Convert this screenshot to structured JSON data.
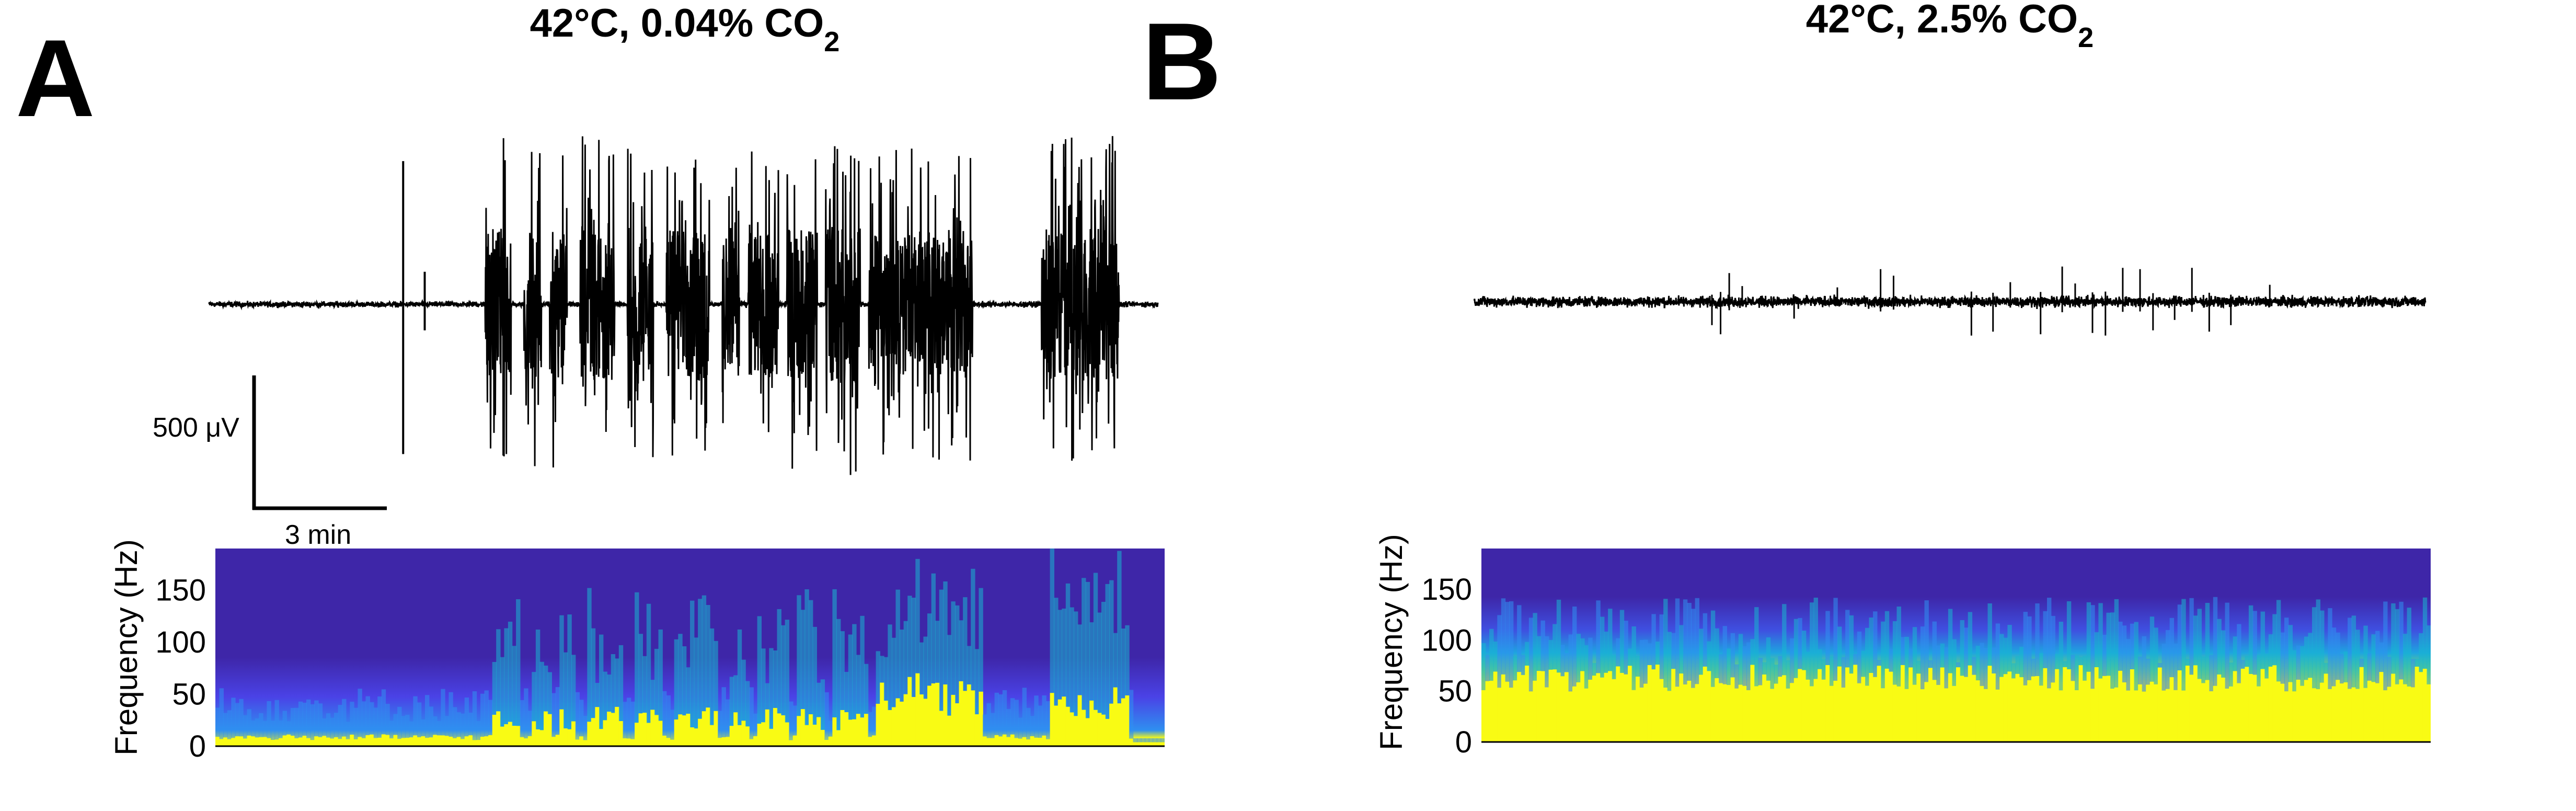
{
  "figure": {
    "panels": [
      {
        "letter": "A",
        "title": "42°C, 0.04% CO",
        "title_sub": "2",
        "scale_bar": {
          "voltage_label": "500 μV",
          "time_label": "3 min"
        }
      },
      {
        "letter": "B",
        "title": "42°C, 2.5% CO",
        "title_sub": "2"
      }
    ]
  },
  "chart_data": [
    {
      "type": "line",
      "panel": "A",
      "description_of_mark": "extracellular voltage trace",
      "units": "μV",
      "x_units": "min",
      "duration_min": 22,
      "baseline_noise_uV": 30,
      "events": [
        {
          "t": 4.5,
          "amplitude_up": 1100,
          "amplitude_down": 1150,
          "type": "spike"
        },
        {
          "t": 5.0,
          "amplitude_up": 250,
          "amplitude_down": 200,
          "type": "spike"
        }
      ],
      "bursts": [
        {
          "start": 6.4,
          "end": 7.0,
          "amplitude": 1300
        },
        {
          "start": 7.3,
          "end": 7.7,
          "amplitude": 1250
        },
        {
          "start": 7.9,
          "end": 8.3,
          "amplitude": 1300
        },
        {
          "start": 8.6,
          "end": 9.4,
          "amplitude": 1300
        },
        {
          "start": 9.7,
          "end": 10.3,
          "amplitude": 1200
        },
        {
          "start": 10.6,
          "end": 11.6,
          "amplitude": 1300
        },
        {
          "start": 11.9,
          "end": 12.3,
          "amplitude": 1150
        },
        {
          "start": 12.5,
          "end": 13.2,
          "amplitude": 1250
        },
        {
          "start": 13.4,
          "end": 14.1,
          "amplitude": 1300
        },
        {
          "start": 14.3,
          "end": 15.1,
          "amplitude": 1350
        },
        {
          "start": 15.3,
          "end": 17.7,
          "amplitude": 1200
        },
        {
          "start": 19.3,
          "end": 21.1,
          "amplitude": 1300
        }
      ]
    },
    {
      "type": "heatmap",
      "panel": "A",
      "ylabel": "Frequency (Hz)",
      "y_ticks": [
        0,
        50,
        100,
        150
      ],
      "ylim": [
        0,
        190
      ],
      "colormap": [
        "#3e26a8",
        "#4a42e6",
        "#2f8ff0",
        "#17b7cf",
        "#53cc93",
        "#cbc224",
        "#f9fb14"
      ],
      "power_profile": "high-power band extends upward during bursts, strongest 15–18 min and 19–21 min"
    },
    {
      "type": "line",
      "panel": "B",
      "description_of_mark": "extracellular voltage trace",
      "units": "μV",
      "x_units": "min",
      "duration_min": 22,
      "baseline_noise_uV": 60,
      "spikes": [
        {
          "t": 5.5,
          "amplitude": 180
        },
        {
          "t": 5.7,
          "amplitude": 250
        },
        {
          "t": 5.9,
          "amplitude": 220
        },
        {
          "t": 6.2,
          "amplitude": 120
        },
        {
          "t": 7.4,
          "amplitude": 130
        },
        {
          "t": 8.4,
          "amplitude": 110
        },
        {
          "t": 9.4,
          "amplitude": 250
        },
        {
          "t": 9.7,
          "amplitude": 200
        },
        {
          "t": 11.5,
          "amplitude": 260
        },
        {
          "t": 12.0,
          "amplitude": 230
        },
        {
          "t": 12.4,
          "amplitude": 150
        },
        {
          "t": 13.1,
          "amplitude": 250
        },
        {
          "t": 13.6,
          "amplitude": 270
        },
        {
          "t": 13.9,
          "amplitude": 140
        },
        {
          "t": 14.3,
          "amplitude": 240
        },
        {
          "t": 14.6,
          "amplitude": 260
        },
        {
          "t": 15.0,
          "amplitude": 260
        },
        {
          "t": 15.4,
          "amplitude": 250
        },
        {
          "t": 15.7,
          "amplitude": 220
        },
        {
          "t": 16.2,
          "amplitude": 140
        },
        {
          "t": 16.6,
          "amplitude": 260
        },
        {
          "t": 17.0,
          "amplitude": 230
        },
        {
          "t": 17.5,
          "amplitude": 180
        },
        {
          "t": 18.4,
          "amplitude": 130
        }
      ]
    },
    {
      "type": "heatmap",
      "panel": "B",
      "ylabel": "Frequency (Hz)",
      "y_ticks": [
        0,
        50,
        100,
        150
      ],
      "ylim": [
        0,
        190
      ],
      "colormap": [
        "#3e26a8",
        "#4a42e6",
        "#2f8ff0",
        "#17b7cf",
        "#53cc93",
        "#cbc224",
        "#f9fb14"
      ],
      "power_profile": "broadband high power 0–70 Hz throughout recording"
    }
  ]
}
